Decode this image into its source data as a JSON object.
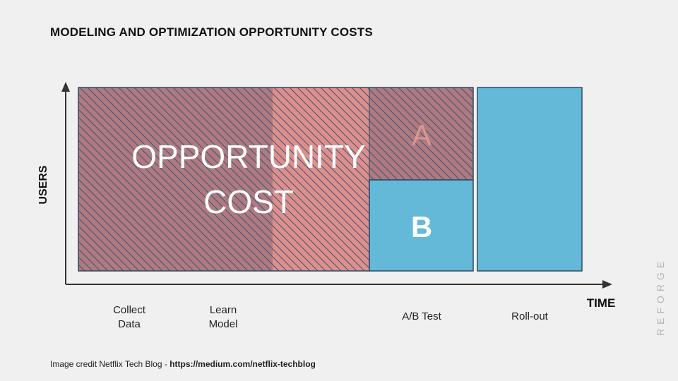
{
  "title": "MODELING AND OPTIMIZATION OPPORTUNITY COSTS",
  "axes": {
    "y_label": "USERS",
    "x_label": "TIME"
  },
  "regions": {
    "opportunity_cost_line1": "OPPORTUNITY",
    "opportunity_cost_line2": "COST",
    "group_a": "A",
    "group_b": "B"
  },
  "phases": {
    "collect_line1": "Collect",
    "collect_line2": "Data",
    "learn_line1": "Learn",
    "learn_line2": "Model",
    "ab_test": "A/B Test",
    "rollout": "Roll-out"
  },
  "credit": {
    "prefix": "Image credit Netflix Tech Blog  -  ",
    "url": "https://medium.com/netflix-techblog"
  },
  "brand": "REFORGE",
  "colors": {
    "background": "#f0f0f0",
    "dark_region": "#b07a80",
    "light_region": "#de8f8c",
    "blue": "#64b9d8",
    "hatch": "#3d5877",
    "border": "#2e4a66",
    "axis": "#333333"
  }
}
